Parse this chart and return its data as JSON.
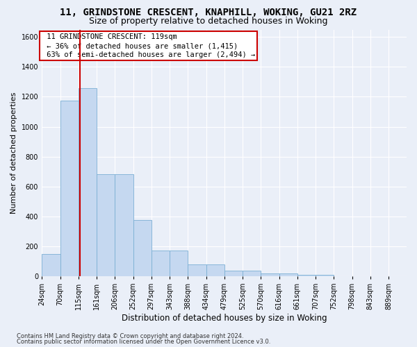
{
  "title1": "11, GRINDSTONE CRESCENT, KNAPHILL, WOKING, GU21 2RZ",
  "title2": "Size of property relative to detached houses in Woking",
  "xlabel": "Distribution of detached houses by size in Woking",
  "ylabel": "Number of detached properties",
  "footnote1": "Contains HM Land Registry data © Crown copyright and database right 2024.",
  "footnote2": "Contains public sector information licensed under the Open Government Licence v3.0.",
  "annotation_line1": "11 GRINDSTONE CRESCENT: 119sqm",
  "annotation_line2": "← 36% of detached houses are smaller (1,415)",
  "annotation_line3": "63% of semi-detached houses are larger (2,494) →",
  "bar_edges": [
    24,
    70,
    115,
    161,
    206,
    252,
    297,
    343,
    388,
    434,
    479,
    525,
    570,
    616,
    661,
    707,
    752,
    798,
    843,
    889,
    934
  ],
  "bar_heights": [
    150,
    1175,
    1260,
    680,
    680,
    375,
    170,
    170,
    80,
    80,
    35,
    35,
    20,
    20,
    10,
    10,
    0,
    0,
    0,
    0
  ],
  "bar_color": "#c5d8f0",
  "bar_edgecolor": "#7bafd4",
  "vline_color": "#cc0000",
  "vline_x": 119,
  "ylim": [
    0,
    1650
  ],
  "yticks": [
    0,
    200,
    400,
    600,
    800,
    1000,
    1200,
    1400,
    1600
  ],
  "bg_color": "#eaeff8",
  "plot_bg": "#eaeff8",
  "grid_color": "#ffffff",
  "title1_fontsize": 10,
  "title2_fontsize": 9,
  "xlabel_fontsize": 8.5,
  "ylabel_fontsize": 8,
  "annotation_fontsize": 7.5,
  "tick_fontsize": 7,
  "footnote_fontsize": 6
}
